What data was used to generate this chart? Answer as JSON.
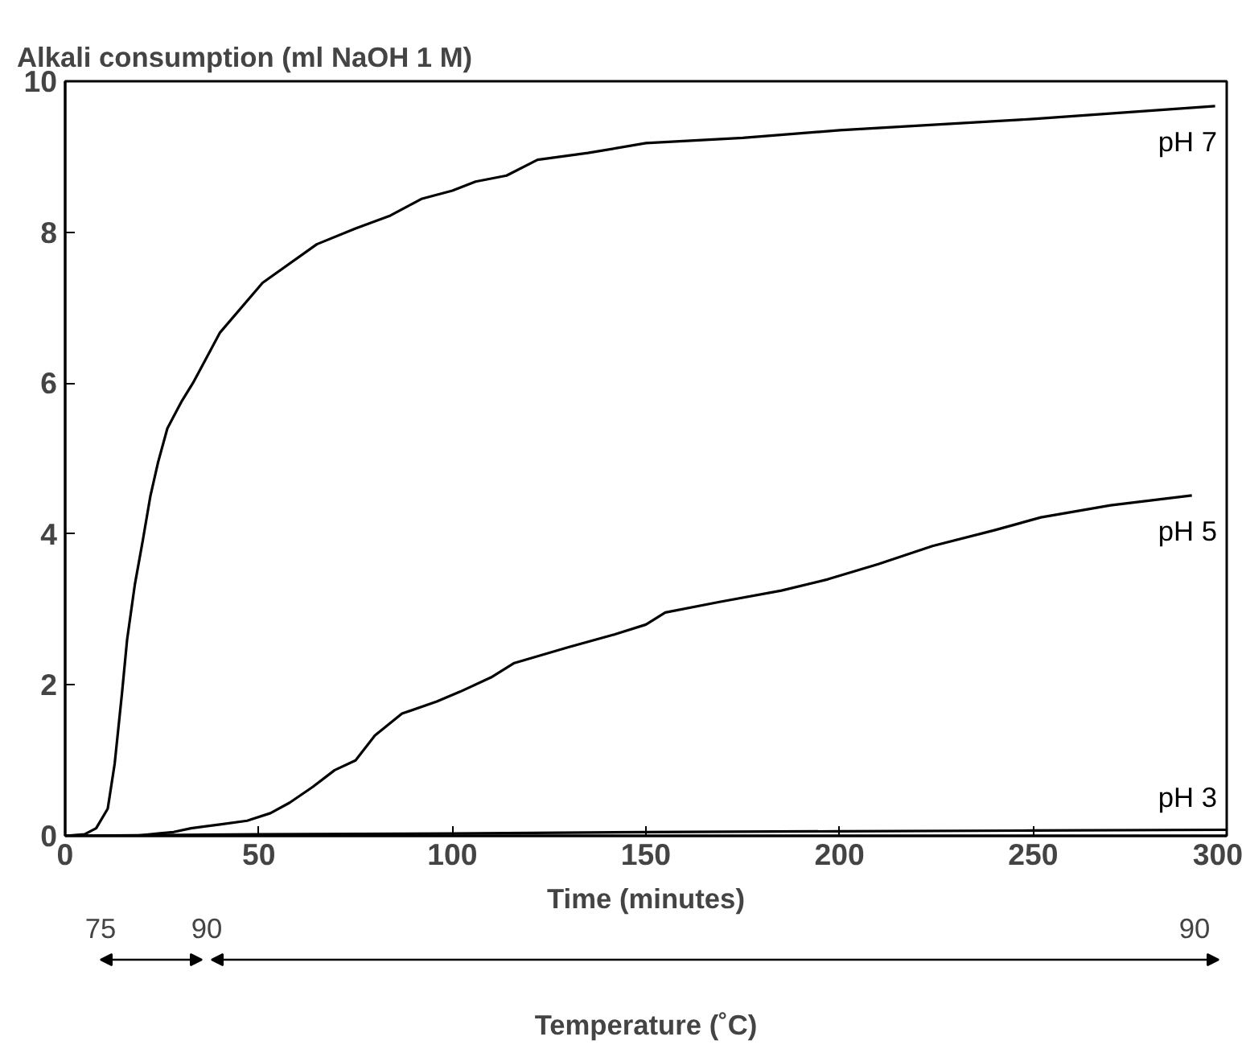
{
  "chart_data": {
    "type": "line",
    "ylabel": "Alkali consumption (ml NaOH 1 M)",
    "xlabel": "Time (minutes)",
    "xlim": [
      0,
      300
    ],
    "xticks": [
      0,
      50,
      100,
      150,
      200,
      250,
      300
    ],
    "ylim": [
      0,
      10
    ],
    "yticks": [
      0,
      2,
      4,
      6,
      8,
      10
    ],
    "grid": false,
    "legend": false,
    "marker": "none",
    "line_style": "solid",
    "series": [
      {
        "name": "pH 7",
        "color": "#000000",
        "x": [
          0,
          5,
          8,
          11,
          12.8,
          14.7,
          16,
          18,
          20,
          22,
          24,
          26.4,
          30,
          33,
          40,
          51,
          65,
          75,
          84,
          92,
          100,
          106,
          114,
          122,
          135,
          150,
          175,
          200,
          250,
          297
        ],
        "values": [
          0,
          0.02,
          0.1,
          0.36,
          0.96,
          1.9,
          2.6,
          3.33,
          3.9,
          4.5,
          4.95,
          5.4,
          5.75,
          6.0,
          6.67,
          7.33,
          7.84,
          8.05,
          8.22,
          8.44,
          8.55,
          8.67,
          8.75,
          8.96,
          9.05,
          9.18,
          9.25,
          9.35,
          9.5,
          9.67
        ]
      },
      {
        "name": "pH 5",
        "color": "#000000",
        "x": [
          18,
          24,
          28,
          32.5,
          40,
          47,
          53,
          58,
          64,
          69.6,
          75,
          80,
          87,
          96,
          102,
          110,
          116,
          130,
          142,
          150,
          155,
          169,
          185,
          197,
          210,
          224,
          240,
          252,
          270,
          291
        ],
        "values": [
          0,
          0.03,
          0.05,
          0.1,
          0.15,
          0.2,
          0.3,
          0.44,
          0.65,
          0.87,
          1.0,
          1.33,
          1.62,
          1.78,
          1.91,
          2.1,
          2.29,
          2.5,
          2.67,
          2.8,
          2.96,
          3.1,
          3.25,
          3.4,
          3.6,
          3.84,
          4.05,
          4.22,
          4.38,
          4.51
        ]
      },
      {
        "name": "pH 3",
        "color": "#000000",
        "x": [
          0,
          50,
          100,
          150,
          200,
          250,
          300
        ],
        "values": [
          0,
          0.02,
          0.03,
          0.05,
          0.06,
          0.07,
          0.08
        ]
      }
    ],
    "annotations": [
      "75",
      "90",
      "90",
      "Temperature (˚C)"
    ]
  }
}
